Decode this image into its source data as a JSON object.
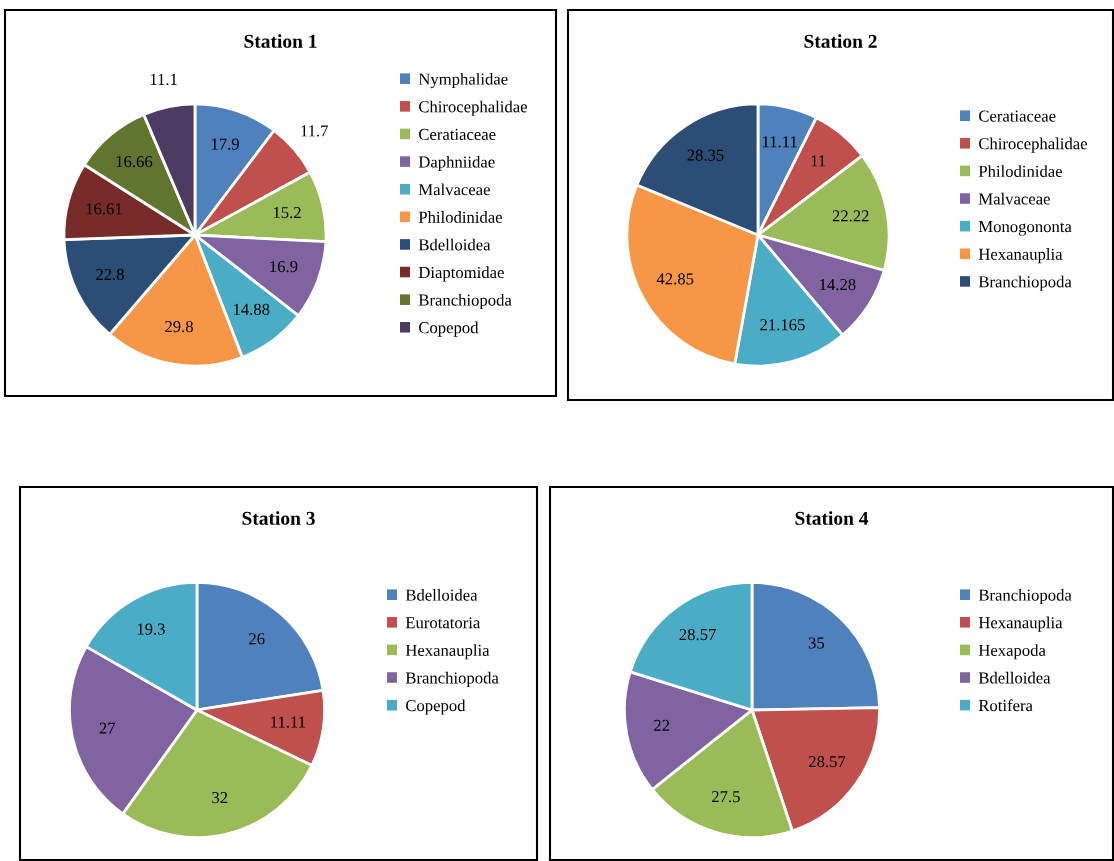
{
  "chart_data": [
    {
      "type": "pie",
      "title": "Station 1",
      "legend": "right",
      "categories": [
        "Nymphalidae",
        "Chirocephalidae",
        "Ceratiaceae",
        "Daphniidae",
        "Malvaceae",
        "Philodinidae",
        "Bdelloidea",
        "Diaptomidae",
        "Branchiopoda",
        "Copepod"
      ],
      "values": [
        17.9,
        11.7,
        15.2,
        16.9,
        14.88,
        29.8,
        22.8,
        16.61,
        16.66,
        11.1
      ],
      "colors": [
        "#4f81bd",
        "#c0504d",
        "#9bbb59",
        "#8064a2",
        "#4bacc6",
        "#f79646",
        "#2c4d75",
        "#772c2a",
        "#5f7530",
        "#4d3b62"
      ],
      "data_labels": true
    },
    {
      "type": "pie",
      "title": "Station 2",
      "legend": "right",
      "categories": [
        "Ceratiaceae",
        "Chirocephalidae",
        "Philodinidae",
        "Malvaceae",
        "Monogononta",
        "Hexanauplia",
        "Branchiopoda"
      ],
      "values": [
        11.11,
        11,
        22.22,
        14.28,
        21.165,
        42.85,
        28.35
      ],
      "colors": [
        "#4f81bd",
        "#c0504d",
        "#9bbb59",
        "#8064a2",
        "#4bacc6",
        "#f79646",
        "#2c4d75"
      ],
      "data_labels": true
    },
    {
      "type": "pie",
      "title": "Station 3",
      "legend": "right",
      "categories": [
        "Bdelloidea",
        "Eurotatoria",
        "Hexanauplia",
        "Branchiopoda",
        "Copepod"
      ],
      "values": [
        26,
        11.11,
        32,
        27,
        19.3
      ],
      "colors": [
        "#4f81bd",
        "#c0504d",
        "#9bbb59",
        "#8064a2",
        "#4bacc6"
      ],
      "data_labels": true
    },
    {
      "type": "pie",
      "title": "Station 4",
      "legend": "right",
      "categories": [
        "Branchiopoda",
        "Hexanauplia",
        "Hexapoda",
        "Bdelloidea",
        "Rotifera"
      ],
      "values": [
        35,
        28.57,
        27.5,
        22,
        28.57
      ],
      "colors": [
        "#4f81bd",
        "#c0504d",
        "#9bbb59",
        "#8064a2",
        "#4bacc6"
      ],
      "data_labels": true
    }
  ]
}
